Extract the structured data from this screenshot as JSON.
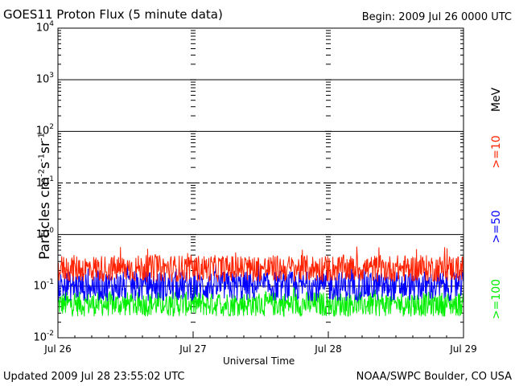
{
  "header": {
    "title": "GOES11 Proton Flux (5 minute data)",
    "begin": "Begin: 2009 Jul 26 0000 UTC"
  },
  "footer": {
    "updated": "Updated 2009 Jul 28 23:55:02 UTC",
    "credit": "NOAA/SWPC Boulder, CO USA"
  },
  "colors": {
    "ge10": "#ff2200",
    "ge50": "#0000ff",
    "ge100": "#00ee00",
    "axes": "#000000"
  },
  "chart_data": {
    "type": "line",
    "xlabel": "Universal Time",
    "ylabel": {
      "base": "Particles cm",
      "sup1": "-2",
      "mid1": "s",
      "sup2": "-1",
      "mid2": "sr",
      "sup3": "-1"
    },
    "y_scale": "log",
    "ylim": [
      0.01,
      10000
    ],
    "y_ticks": [
      {
        "base": "10",
        "exp": "4"
      },
      {
        "base": "10",
        "exp": "3"
      },
      {
        "base": "10",
        "exp": "2"
      },
      {
        "base": "10",
        "exp": "1"
      },
      {
        "base": "10",
        "exp": "0"
      },
      {
        "base": "10",
        "exp": "-1"
      },
      {
        "base": "10",
        "exp": "-2"
      }
    ],
    "x_ticks": [
      "Jul 26",
      "Jul 27",
      "Jul 28",
      "Jul 29"
    ],
    "xlim": [
      "2009-07-26 00:00",
      "2009-07-29 00:00"
    ],
    "energy_unit": "MeV",
    "series": [
      {
        "name": ">=10",
        "color": "#ff2200",
        "typical_value": 0.22,
        "range": [
          0.12,
          0.6
        ]
      },
      {
        "name": ">=50",
        "color": "#0000ff",
        "typical_value": 0.1,
        "range": [
          0.05,
          0.3
        ]
      },
      {
        "name": ">=100",
        "color": "#00ee00",
        "typical_value": 0.045,
        "range": [
          0.025,
          0.11
        ]
      }
    ],
    "threshold_lines": [
      10
    ],
    "grid": "solid lines at each decade, dashed at 10^1"
  }
}
